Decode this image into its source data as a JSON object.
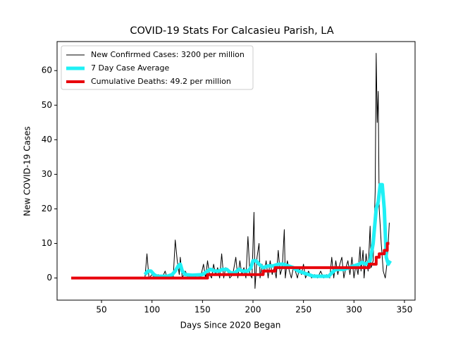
{
  "chart_data": {
    "type": "line",
    "title": "COVID-19 Stats For Calcasieu Parish, LA",
    "xlabel": "Days Since 2020 Began",
    "ylabel": "New COVID-19 Cases",
    "xlim": [
      6,
      360.5
    ],
    "ylim": [
      -6.4,
      68.4
    ],
    "xticks": [
      50,
      100,
      150,
      200,
      250,
      300,
      350
    ],
    "yticks": [
      0,
      10,
      20,
      30,
      40,
      50,
      60
    ],
    "legend": "upper left",
    "series": [
      {
        "name": "New Confirmed Cases: 3200 per million",
        "color": "#000000",
        "width": 1,
        "x": [
          93,
          95,
          97,
          100,
          103,
          106,
          110,
          113,
          115,
          118,
          121,
          123,
          125,
          127,
          128,
          130,
          133,
          136,
          139,
          142,
          145,
          148,
          151,
          153,
          155,
          157,
          159,
          161,
          163,
          165,
          167,
          169,
          171,
          173,
          175,
          177,
          180,
          183,
          185,
          187,
          189,
          191,
          193,
          195,
          197,
          199,
          201,
          202,
          204,
          206,
          207,
          209,
          211,
          213,
          215,
          217,
          219,
          221,
          223,
          225,
          227,
          229,
          231,
          232,
          234,
          236,
          238,
          240,
          242,
          244,
          246,
          248,
          250,
          252,
          255,
          258,
          261,
          264,
          267,
          270,
          273,
          276,
          278,
          280,
          282,
          284,
          286,
          288,
          290,
          292,
          294,
          296,
          298,
          300,
          302,
          304,
          306,
          307,
          309,
          310,
          312,
          314,
          316,
          317,
          319,
          321,
          322,
          323,
          324,
          325,
          327,
          329,
          331,
          333,
          335
        ],
        "values": [
          0,
          7,
          0,
          1,
          0,
          1,
          0,
          2,
          0,
          1,
          0,
          11,
          5,
          1,
          6,
          0,
          2,
          0,
          1,
          0,
          1,
          0,
          4,
          0,
          5,
          1,
          0,
          4,
          1,
          3,
          0,
          7,
          0,
          3,
          2,
          0,
          1,
          6,
          0,
          5,
          1,
          3,
          0,
          12,
          1,
          0,
          19,
          -3,
          6,
          10,
          0,
          4,
          1,
          5,
          0,
          5,
          1,
          3,
          0,
          8,
          1,
          3,
          14,
          0,
          5,
          2,
          0,
          3,
          2,
          0,
          3,
          1,
          4,
          0,
          2,
          0,
          1,
          0,
          2,
          0,
          1,
          0,
          6,
          0,
          5,
          1,
          4,
          6,
          0,
          3,
          5,
          1,
          6,
          0,
          4,
          1,
          9,
          2,
          8,
          0,
          7,
          2,
          15,
          3,
          5,
          25,
          65,
          45,
          54,
          20,
          10,
          2,
          0,
          5,
          16
        ]
      },
      {
        "name": "7 Day Case Average",
        "color": "#1ff0f5",
        "width": 5,
        "x": [
          93,
          96,
          99,
          102,
          105,
          110,
          115,
          120,
          123,
          126,
          128,
          130,
          133,
          140,
          150,
          155,
          158,
          162,
          166,
          170,
          174,
          178,
          182,
          186,
          190,
          195,
          198,
          200,
          203,
          206,
          210,
          215,
          220,
          225,
          230,
          235,
          240,
          245,
          250,
          255,
          260,
          265,
          270,
          275,
          278,
          282,
          286,
          290,
          295,
          300,
          305,
          308,
          312,
          316,
          319,
          322,
          324,
          326,
          328,
          330,
          332,
          334,
          336
        ],
        "values": [
          1,
          2,
          2,
          1,
          0.5,
          0.5,
          0.5,
          1,
          2,
          3.5,
          4,
          2,
          1,
          0.8,
          1,
          2,
          2.5,
          2,
          2,
          2.5,
          2.5,
          1.5,
          1.5,
          2.5,
          2,
          2,
          3,
          5,
          5,
          4,
          3,
          3.5,
          3.5,
          4,
          4,
          3.5,
          3,
          2,
          1.5,
          1,
          0.5,
          0.5,
          0.5,
          0.5,
          1.5,
          2.5,
          2.5,
          2.5,
          3,
          3.5,
          4,
          4.5,
          4,
          5,
          10,
          20,
          22,
          27,
          27,
          20,
          6,
          4,
          5
        ]
      },
      {
        "name": "Cumulative Deaths: 49.2 per million",
        "color": "#e8000b",
        "width": 4,
        "x": [
          20,
          155,
          155,
          205,
          205,
          210,
          210,
          222,
          222,
          315,
          315,
          322,
          322,
          325,
          325,
          330,
          330,
          333,
          333,
          335
        ],
        "values": [
          0,
          0,
          1,
          1,
          1,
          1,
          2,
          2,
          3,
          3,
          4,
          4,
          6,
          6,
          7,
          7,
          8,
          8,
          10,
          10
        ]
      }
    ]
  }
}
